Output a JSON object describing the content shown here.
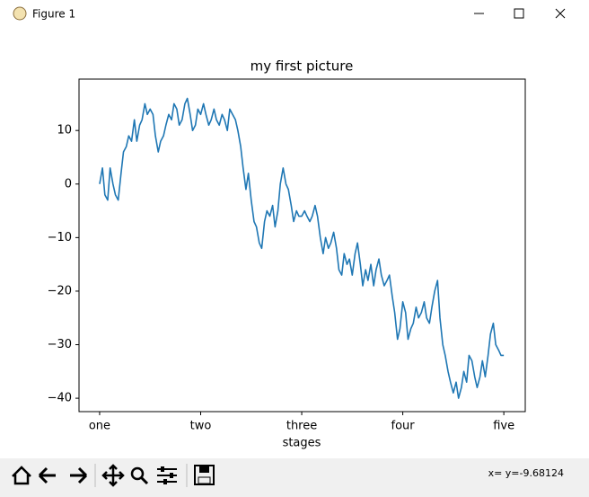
{
  "window": {
    "title": "Figure 1"
  },
  "chart_data": {
    "type": "line",
    "title": "my first picture",
    "xlabel": "stages",
    "color": "#1f77b4",
    "x": [
      0,
      7,
      13,
      20,
      26,
      33,
      39,
      46,
      53,
      59,
      66,
      72,
      79,
      86,
      92,
      99,
      105,
      112,
      118,
      125,
      132,
      138,
      145,
      151,
      158,
      164,
      171,
      178,
      184,
      191,
      197,
      204,
      211,
      217,
      224,
      230,
      237,
      243,
      250,
      257,
      263,
      270,
      276,
      283,
      289,
      296,
      303,
      309,
      316,
      322,
      329,
      336,
      342,
      349,
      355,
      362,
      368,
      375,
      382,
      388,
      395,
      401,
      408,
      414,
      421,
      428,
      434,
      441,
      447,
      454,
      461,
      467,
      474,
      480,
      487,
      493,
      500,
      507,
      513,
      520,
      526,
      533,
      539,
      546,
      553,
      559,
      566,
      572,
      579,
      586,
      592,
      599,
      605,
      612,
      618,
      625,
      632,
      638,
      645,
      651,
      658,
      664,
      671,
      678,
      684,
      691,
      697,
      704,
      711,
      717,
      724,
      730,
      737,
      743,
      750,
      757,
      763,
      770,
      776,
      783,
      789,
      796,
      803,
      809,
      816,
      822,
      829,
      836,
      842,
      849,
      855,
      862,
      868,
      875,
      882,
      888,
      895,
      901,
      908,
      914,
      921,
      928,
      934,
      941,
      947,
      954,
      961,
      967,
      974,
      980,
      987,
      993,
      1000
    ],
    "values": [
      0,
      3,
      -2,
      -3,
      3,
      0,
      -2,
      -3,
      2,
      6,
      7,
      9,
      8,
      12,
      8,
      11,
      12,
      15,
      13,
      14,
      13,
      9,
      6,
      8,
      9,
      11,
      13,
      12,
      15,
      14,
      11,
      12,
      15,
      16,
      13,
      10,
      11,
      14,
      13,
      15,
      13,
      11,
      12,
      14,
      12,
      11,
      13,
      12,
      10,
      14,
      13,
      12,
      10,
      7,
      3,
      -1,
      2,
      -3,
      -7,
      -8,
      -11,
      -12,
      -7,
      -5,
      -6,
      -4,
      -8,
      -5,
      0,
      3,
      0,
      -1,
      -4,
      -7,
      -5,
      -6,
      -6,
      -5,
      -6,
      -7,
      -6,
      -4,
      -6,
      -10,
      -13,
      -10,
      -12,
      -11,
      -9,
      -12,
      -16,
      -17,
      -13,
      -15,
      -14,
      -17,
      -13,
      -11,
      -15,
      -19,
      -16,
      -18,
      -15,
      -19,
      -16,
      -14,
      -17,
      -19,
      -18,
      -17,
      -21,
      -24,
      -29,
      -27,
      -22,
      -24,
      -29,
      -27,
      -26,
      -23,
      -25,
      -24,
      -22,
      -25,
      -26,
      -23,
      -20,
      -18,
      -25,
      -30,
      -32,
      -35,
      -37,
      -39,
      -37,
      -40,
      -38,
      -35,
      -37,
      -32,
      -33,
      -36,
      -38,
      -36,
      -33,
      -36,
      -32,
      -28,
      -26,
      -30,
      -31,
      -32,
      -32
    ],
    "xlim": [
      -51,
      1053
    ],
    "xticks": [
      {
        "value": 0,
        "label": "one"
      },
      {
        "value": 250,
        "label": "two"
      },
      {
        "value": 500,
        "label": "three"
      },
      {
        "value": 750,
        "label": "four"
      },
      {
        "value": 1000,
        "label": "five"
      }
    ],
    "ylim": [
      -42.5,
      19.6
    ],
    "yticks": [
      {
        "value": -40,
        "label": "−40"
      },
      {
        "value": -30,
        "label": "−30"
      },
      {
        "value": -20,
        "label": "−20"
      },
      {
        "value": -10,
        "label": "−10"
      },
      0,
      10
    ],
    "grid": false
  },
  "toolbar": {
    "status": "x= y=-9.68124"
  }
}
